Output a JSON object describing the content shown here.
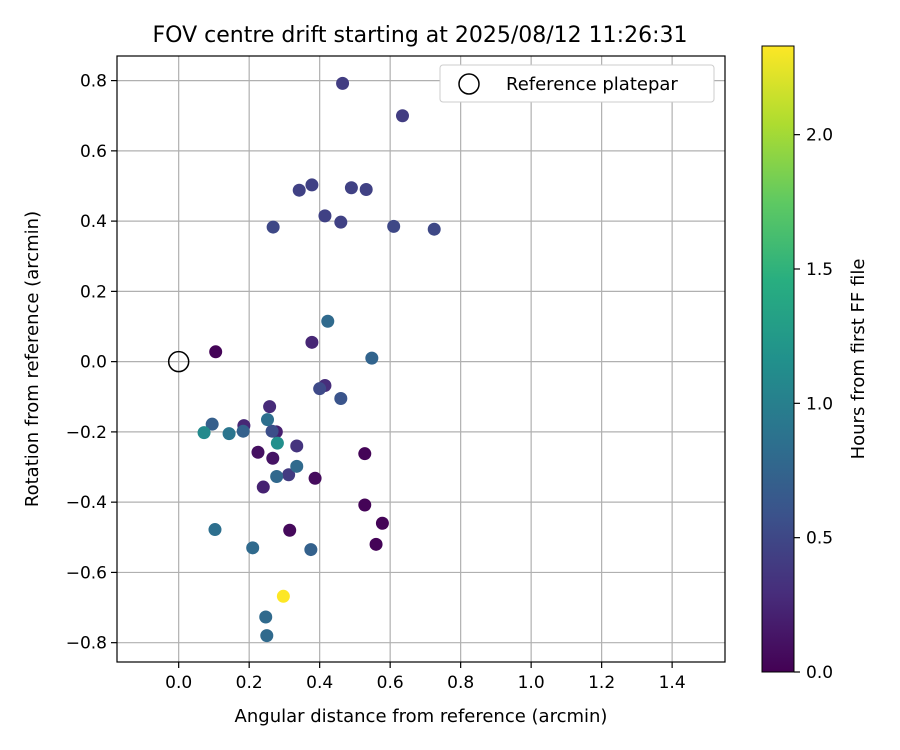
{
  "chart_data": {
    "type": "scatter",
    "title": "FOV centre drift starting at 2025/08/12 11:26:31",
    "xlabel": "Angular distance from reference (arcmin)",
    "ylabel": "Rotation from reference (arcmin)",
    "xlim": [
      -0.175,
      1.55
    ],
    "ylim": [
      -0.855,
      0.87
    ],
    "xticks": [
      0.0,
      0.2,
      0.4,
      0.6,
      0.8,
      1.0,
      1.2,
      1.4
    ],
    "xtick_labels": [
      "0.0",
      "0.2",
      "0.4",
      "0.6",
      "0.8",
      "1.0",
      "1.2",
      "1.4"
    ],
    "yticks": [
      -0.8,
      -0.6,
      -0.4,
      -0.2,
      0.0,
      0.2,
      0.4,
      0.6,
      0.8
    ],
    "ytick_labels": [
      "−0.8",
      "−0.6",
      "−0.4",
      "−0.2",
      "0.0",
      "0.2",
      "0.4",
      "0.6",
      "0.8"
    ],
    "grid": true,
    "legend": {
      "position": "top-right",
      "entries": [
        {
          "label": "Reference platepar",
          "marker": "open-circle"
        }
      ]
    },
    "reference_point": {
      "x": 0.0,
      "y": 0.0
    },
    "colorbar": {
      "label": "Hours from first FF file",
      "colormap": "viridis",
      "range": [
        0.0,
        2.33
      ],
      "ticks": [
        0.0,
        0.5,
        1.0,
        1.5,
        2.0
      ],
      "tick_labels": [
        "0.0",
        "0.5",
        "1.0",
        "1.5",
        "2.0"
      ]
    },
    "points": [
      {
        "x": 0.105,
        "y": 0.028,
        "hours": 0.02
      },
      {
        "x": 0.528,
        "y": -0.262,
        "hours": 0.02
      },
      {
        "x": 0.528,
        "y": -0.408,
        "hours": 0.02
      },
      {
        "x": 0.578,
        "y": -0.46,
        "hours": 0.02
      },
      {
        "x": 0.56,
        "y": -0.52,
        "hours": 0.02
      },
      {
        "x": 0.315,
        "y": -0.48,
        "hours": 0.05
      },
      {
        "x": 0.387,
        "y": -0.332,
        "hours": 0.07
      },
      {
        "x": 0.225,
        "y": -0.258,
        "hours": 0.1
      },
      {
        "x": 0.267,
        "y": -0.275,
        "hours": 0.12
      },
      {
        "x": 0.24,
        "y": -0.357,
        "hours": 0.22
      },
      {
        "x": 0.277,
        "y": -0.2,
        "hours": 0.2
      },
      {
        "x": 0.185,
        "y": -0.182,
        "hours": 0.25
      },
      {
        "x": 0.258,
        "y": -0.128,
        "hours": 0.28
      },
      {
        "x": 0.378,
        "y": 0.055,
        "hours": 0.25
      },
      {
        "x": 0.415,
        "y": -0.068,
        "hours": 0.3
      },
      {
        "x": 0.335,
        "y": -0.24,
        "hours": 0.35
      },
      {
        "x": 0.312,
        "y": -0.322,
        "hours": 0.4
      },
      {
        "x": 0.465,
        "y": 0.792,
        "hours": 0.42
      },
      {
        "x": 0.635,
        "y": 0.7,
        "hours": 0.42
      },
      {
        "x": 0.342,
        "y": 0.488,
        "hours": 0.45
      },
      {
        "x": 0.378,
        "y": 0.503,
        "hours": 0.45
      },
      {
        "x": 0.49,
        "y": 0.495,
        "hours": 0.45
      },
      {
        "x": 0.532,
        "y": 0.49,
        "hours": 0.45
      },
      {
        "x": 0.415,
        "y": 0.415,
        "hours": 0.45
      },
      {
        "x": 0.46,
        "y": 0.397,
        "hours": 0.45
      },
      {
        "x": 0.268,
        "y": 0.383,
        "hours": 0.5
      },
      {
        "x": 0.61,
        "y": 0.385,
        "hours": 0.5
      },
      {
        "x": 0.725,
        "y": 0.377,
        "hours": 0.5
      },
      {
        "x": 0.4,
        "y": -0.077,
        "hours": 0.52
      },
      {
        "x": 0.46,
        "y": -0.105,
        "hours": 0.6
      },
      {
        "x": 0.265,
        "y": -0.198,
        "hours": 0.55
      },
      {
        "x": 0.548,
        "y": 0.01,
        "hours": 0.75
      },
      {
        "x": 0.423,
        "y": 0.115,
        "hours": 0.8
      },
      {
        "x": 0.095,
        "y": -0.178,
        "hours": 0.7
      },
      {
        "x": 0.183,
        "y": -0.198,
        "hours": 0.72
      },
      {
        "x": 0.252,
        "y": -0.165,
        "hours": 0.85
      },
      {
        "x": 0.143,
        "y": -0.205,
        "hours": 0.9
      },
      {
        "x": 0.072,
        "y": -0.202,
        "hours": 1.1
      },
      {
        "x": 0.28,
        "y": -0.232,
        "hours": 1.15
      },
      {
        "x": 0.335,
        "y": -0.298,
        "hours": 0.8
      },
      {
        "x": 0.278,
        "y": -0.327,
        "hours": 0.78
      },
      {
        "x": 0.103,
        "y": -0.478,
        "hours": 0.85
      },
      {
        "x": 0.21,
        "y": -0.53,
        "hours": 0.8
      },
      {
        "x": 0.375,
        "y": -0.535,
        "hours": 0.72
      },
      {
        "x": 0.297,
        "y": -0.668,
        "hours": 2.33
      },
      {
        "x": 0.247,
        "y": -0.727,
        "hours": 0.8
      },
      {
        "x": 0.25,
        "y": -0.78,
        "hours": 0.8
      }
    ]
  }
}
